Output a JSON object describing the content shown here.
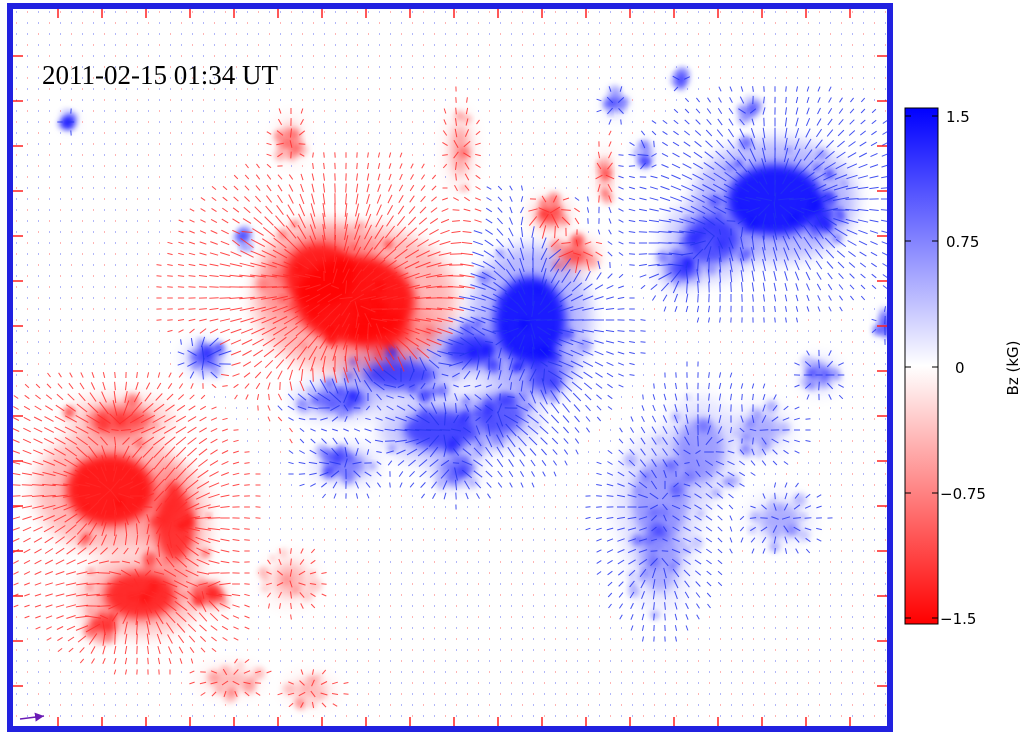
{
  "image": {
    "timestamp": "2011-02-15 01:34 UT",
    "frame_color": "#2121e0",
    "tick_color": "#ff2020"
  },
  "colorbar": {
    "label": "Bz  (kG)",
    "ticks": [
      "1.5",
      "0.75",
      "0",
      "−0.75",
      "−1.5"
    ],
    "positive_color": "#0000ff",
    "negative_color": "#ff0000",
    "zero_color": "#ffffff"
  },
  "field_vector_colors": {
    "positive": "#2233ee",
    "negative": "#ff2a2a",
    "scale_arrow": "#6a1bb5"
  }
}
